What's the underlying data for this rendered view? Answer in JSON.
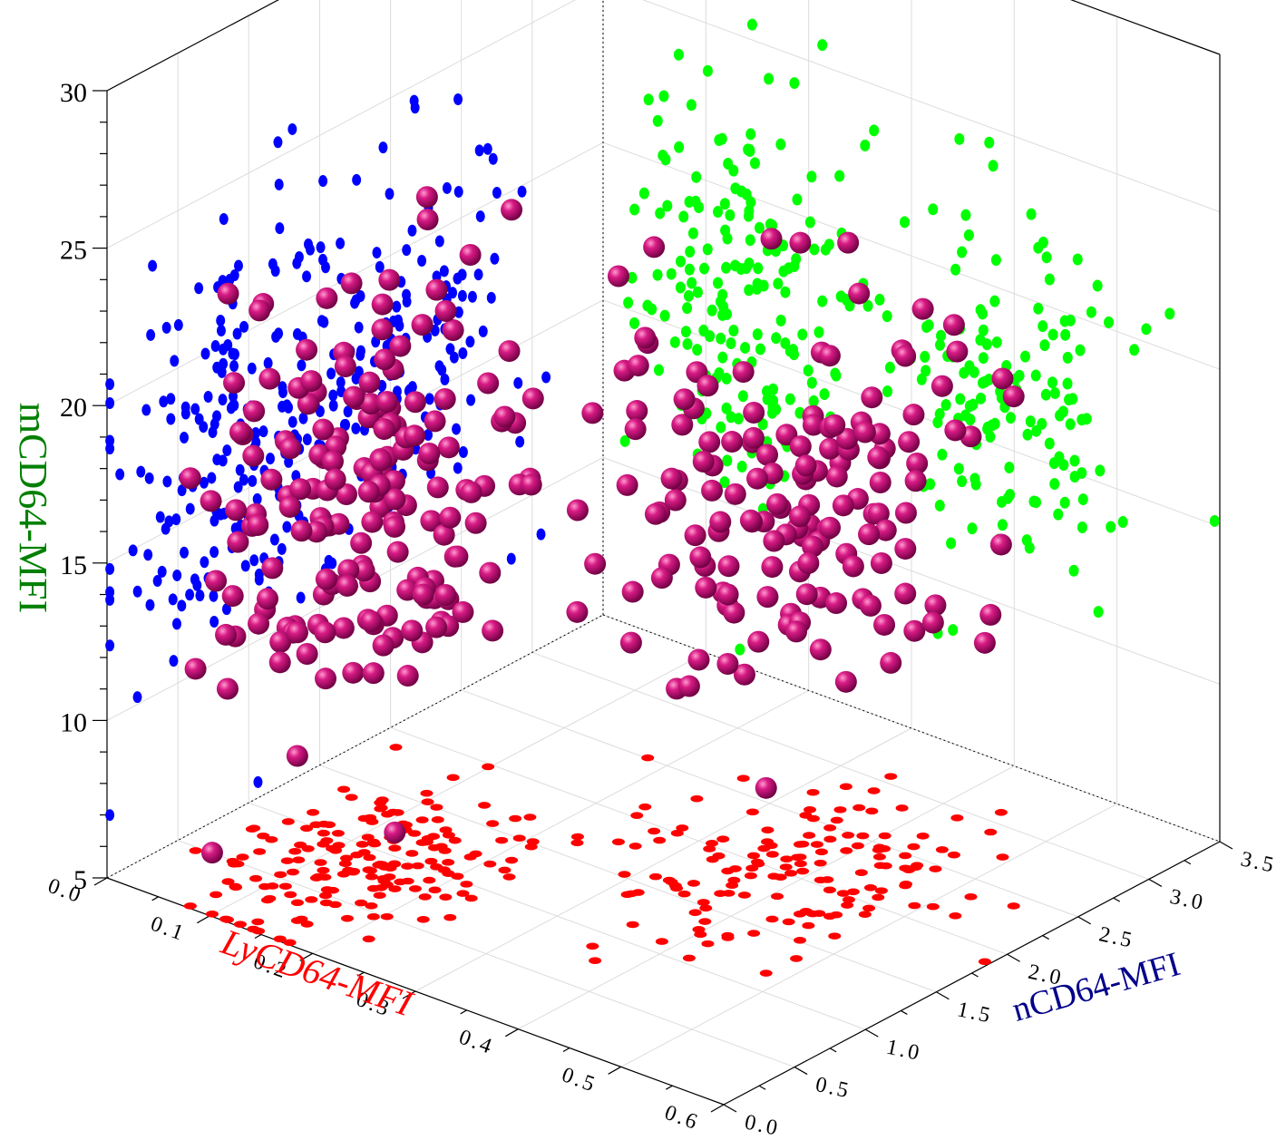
{
  "chart_data": {
    "type": "scatter",
    "title": "",
    "axes": {
      "x": {
        "label": "LyCD64-MFI",
        "color": "#ff0000",
        "range": [
          0.0,
          0.6
        ],
        "ticks": [
          "0.0",
          "0.1",
          "0.2",
          "0.3",
          "0.4",
          "0.5",
          "0.6"
        ]
      },
      "y": {
        "label": "nCD64-MFI",
        "color": "#00008b",
        "range": [
          0.0,
          3.5
        ],
        "ticks": [
          "0.0",
          "0.5",
          "1.0",
          "1.5",
          "2.0",
          "2.5",
          "3.0",
          "3.5"
        ]
      },
      "z": {
        "label": "mCD64-MFI",
        "color": "#008000",
        "range": [
          5,
          30
        ],
        "ticks": [
          "5",
          "10",
          "15",
          "20",
          "25",
          "30"
        ]
      }
    },
    "grid": true,
    "projections": [
      {
        "name": "",
        "plane": "x=0 wall (nCD64 vs mCD64)",
        "color": "#0000ff"
      },
      {
        "name": "",
        "plane": "y=max wall (LyCD64 vs mCD64)",
        "color": "#00ff00"
      },
      {
        "name": "",
        "plane": "floor z=5 (LyCD64 vs nCD64)",
        "color": "#ff0000"
      }
    ],
    "main_series": {
      "name": "",
      "color": "#c2006f",
      "marker": "sphere"
    },
    "groups": [
      {
        "n": 170,
        "x_mean": 0.13,
        "x_sd": 0.05,
        "y_mean": 0.85,
        "y_sd": 0.45,
        "z_mean": 16.5,
        "z_sd": 3.3
      },
      {
        "n": 150,
        "x_mean": 0.38,
        "x_sd": 0.07,
        "y_mean": 2.05,
        "y_sd": 0.45,
        "z_mean": 16.8,
        "z_sd": 3.2
      }
    ],
    "points": [
      [
        0.22,
        1.21,
        19.4
      ],
      [
        0.07,
        1.06,
        14.5
      ],
      [
        0.24,
        0.68,
        17.7
      ],
      [
        0.23,
        1.17,
        21.7
      ],
      [
        0.36,
        1.94,
        16.0
      ],
      [
        0.31,
        2.02,
        16.2
      ],
      [
        0.21,
        1.47,
        16.5
      ],
      [
        0.37,
        0.76,
        17.6
      ],
      [
        0.12,
        0.62,
        13.0
      ],
      [
        0.16,
        0.45,
        18.5
      ]
    ],
    "clouds": [
      {
        "mean": [
          0.13,
          0.85,
          16.5
        ],
        "sd": [
          0.05,
          0.45,
          3.3
        ],
        "count": 170
      },
      {
        "mean": [
          0.38,
          2.05,
          16.8
        ],
        "sd": [
          0.07,
          0.45,
          3.2
        ],
        "count": 150
      }
    ]
  }
}
